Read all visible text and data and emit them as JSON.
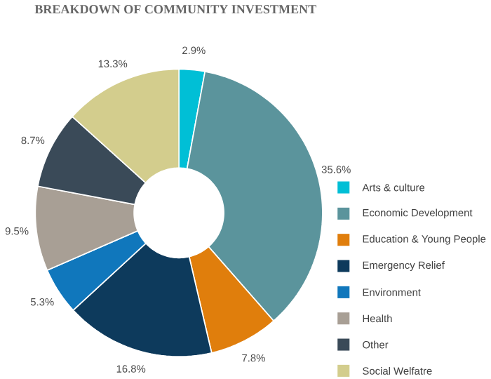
{
  "chart_data": {
    "type": "donut",
    "title": "BREAKDOWN OF COMMUNITY INVESTMENT",
    "categories": [
      "Arts & culture",
      "Economic Development",
      "Education & Young People",
      "Emergency Relief",
      "Environment",
      "Health",
      "Other",
      "Social Welfatre"
    ],
    "values": [
      2.9,
      35.6,
      7.8,
      16.8,
      5.3,
      9.5,
      8.7,
      13.3
    ],
    "colors": [
      "#00bfd6",
      "#5b949c",
      "#e07e0c",
      "#0d3a5c",
      "#1077bc",
      "#a89f95",
      "#3a4a58",
      "#d3cd8d"
    ],
    "value_labels": [
      "2.9%",
      "35.6%",
      "7.8%",
      "16.8%",
      "5.3%",
      "9.5%",
      "8.7%",
      "13.3%"
    ],
    "legend": "right"
  }
}
